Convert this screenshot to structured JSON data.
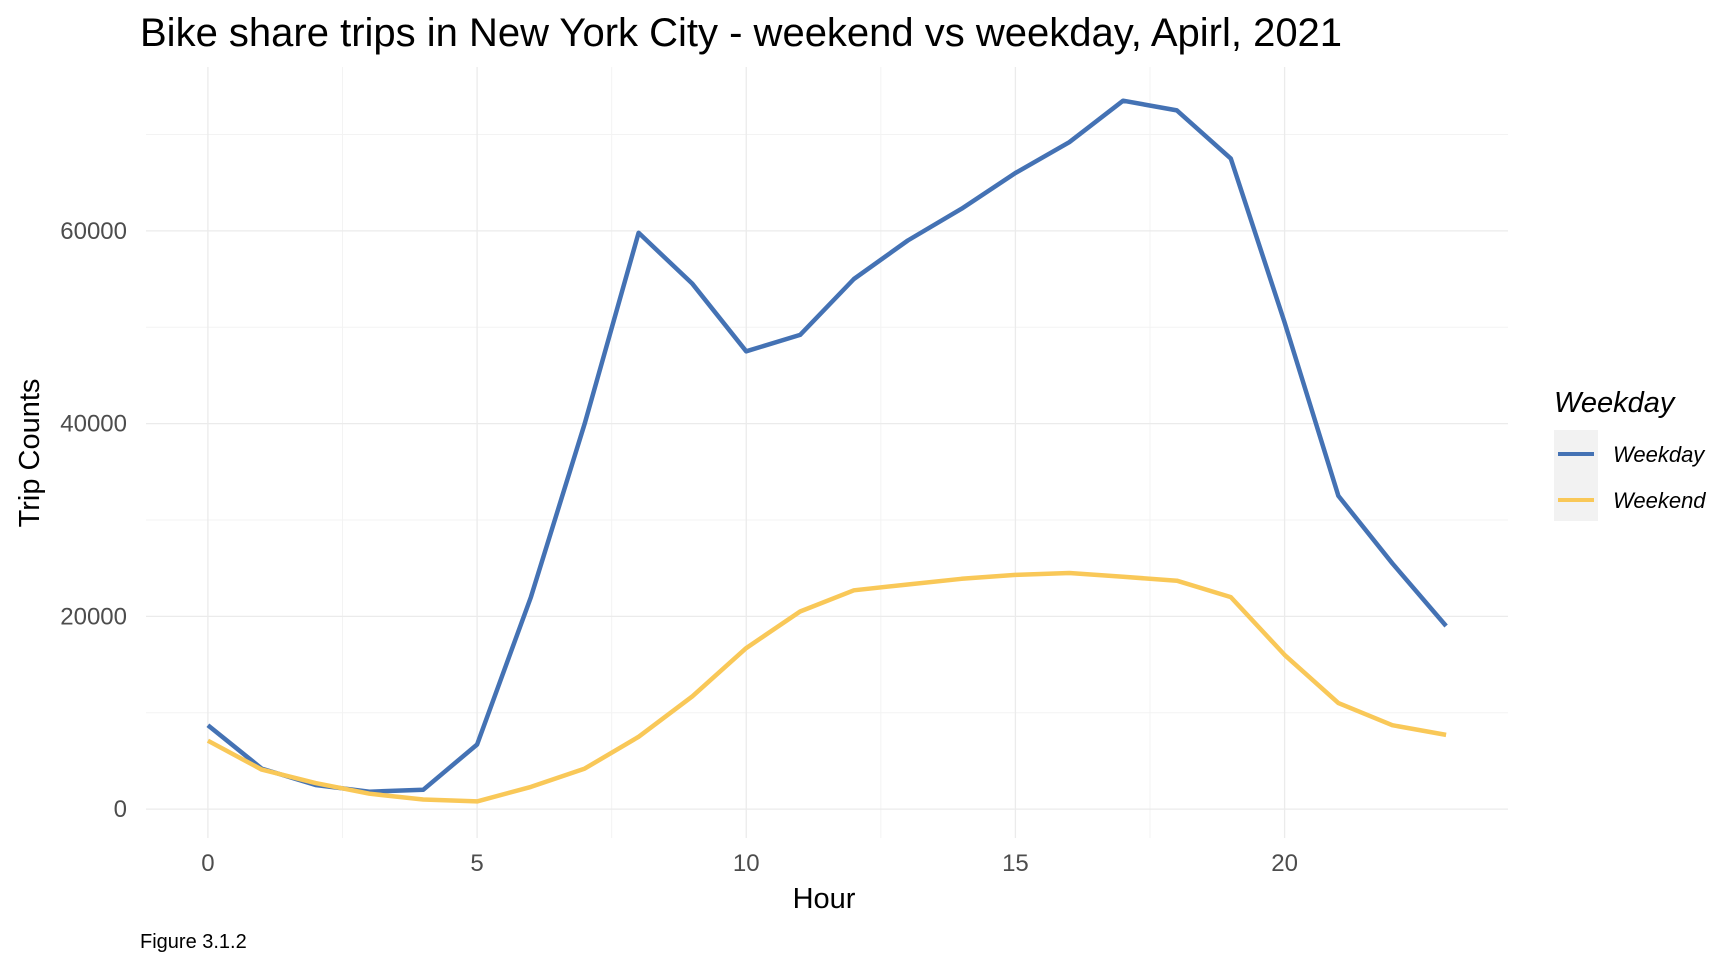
{
  "chart_data": {
    "type": "line",
    "title": "Bike share trips in New York City - weekend vs weekday, Apirl, 2021",
    "xlabel": "Hour",
    "ylabel": "Trip Counts",
    "caption": "Figure 3.1.2",
    "x": [
      0,
      1,
      2,
      3,
      4,
      5,
      6,
      7,
      8,
      9,
      10,
      11,
      12,
      13,
      14,
      15,
      16,
      17,
      18,
      19,
      20,
      21,
      22,
      23
    ],
    "xlim": [
      -1.15,
      24.15
    ],
    "ylim": [
      -3000,
      77000
    ],
    "x_ticks": [
      0,
      5,
      10,
      15,
      20
    ],
    "y_ticks": [
      0,
      20000,
      40000,
      60000
    ],
    "grid": true,
    "legend": {
      "title": "Weekday",
      "position": "right"
    },
    "series": [
      {
        "name": "Weekday",
        "color": "#4472b4",
        "values": [
          8700,
          4200,
          2500,
          1800,
          2000,
          6700,
          22000,
          40000,
          59800,
          54500,
          47500,
          49200,
          55000,
          59000,
          62300,
          66000,
          69200,
          73500,
          72500,
          67500,
          50500,
          32500,
          25500,
          19000
        ]
      },
      {
        "name": "Weekend",
        "color": "#f9c858",
        "values": [
          7100,
          4100,
          2700,
          1600,
          1000,
          800,
          2300,
          4200,
          7500,
          11700,
          16700,
          20500,
          22700,
          23300,
          23900,
          24300,
          24500,
          24100,
          23700,
          22000,
          16000,
          11000,
          8700,
          7700
        ]
      }
    ]
  }
}
